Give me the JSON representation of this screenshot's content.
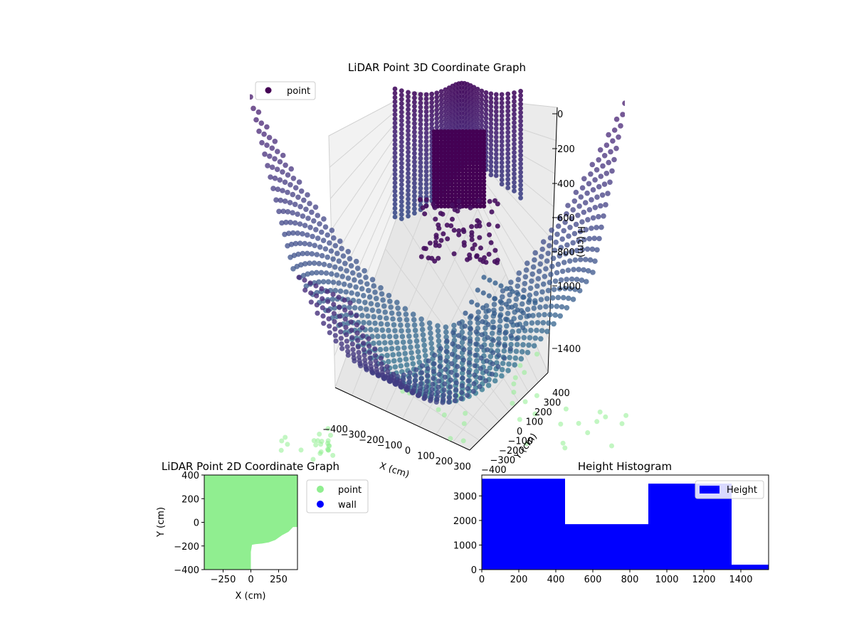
{
  "chart_data": [
    {
      "type": "scatter",
      "projection": "3d",
      "title": "LiDAR Point 3D Coordinate Graph",
      "xlabel": "X (cm)",
      "ylabel": "Y (cm)",
      "zlabel": "H (cm)",
      "x_ticks": [
        "−400",
        "−300",
        "−200",
        "−100",
        "0",
        "100",
        "200",
        "300"
      ],
      "y_ticks": [
        "−400",
        "−300",
        "−200",
        "−100",
        "0",
        "100",
        "200",
        "300",
        "400"
      ],
      "z_ticks": [
        "0",
        "200",
        "400",
        "600",
        "800",
        "1000",
        "1400"
      ],
      "xlim": [
        -450,
        350
      ],
      "ylim": [
        -450,
        450
      ],
      "zlim": [
        0,
        1500
      ],
      "z_inverted": true,
      "grid": true,
      "colormap": "viridis",
      "series": [
        {
          "name": "point",
          "color": "#440154",
          "description": "lidar returns colored by height"
        }
      ],
      "floor_projection_color": "#90ee90",
      "legend": "top-left"
    },
    {
      "type": "scatter",
      "title": "LiDAR Point 2D Coordinate Graph",
      "xlabel": "X (cm)",
      "ylabel": "Y (cm)",
      "x_ticks": [
        "−250",
        "0",
        "250"
      ],
      "y_ticks": [
        "400",
        "200",
        "0",
        "−200",
        "−400"
      ],
      "xlim": [
        -420,
        420
      ],
      "ylim": [
        -400,
        400
      ],
      "series": [
        {
          "name": "point",
          "color": "#90ee90"
        },
        {
          "name": "wall",
          "color": "#0000ff"
        }
      ],
      "boundary": [
        [
          -420,
          400
        ],
        [
          420,
          400
        ],
        [
          420,
          -40
        ],
        [
          380,
          -40
        ],
        [
          340,
          -80
        ],
        [
          280,
          -110
        ],
        [
          220,
          -150
        ],
        [
          160,
          -170
        ],
        [
          100,
          -180
        ],
        [
          40,
          -185
        ],
        [
          10,
          -190
        ],
        [
          0,
          -250
        ],
        [
          0,
          -400
        ],
        [
          -420,
          -400
        ]
      ],
      "legend": "right-outside"
    },
    {
      "type": "bar",
      "subtype": "histogram",
      "title": "Height Histogram",
      "x_ticks": [
        "0",
        "200",
        "400",
        "600",
        "800",
        "1000",
        "1200",
        "1400"
      ],
      "y_ticks": [
        "0",
        "1000",
        "2000",
        "3000"
      ],
      "xlim": [
        0,
        1550
      ],
      "ylim": [
        0,
        3850
      ],
      "bin_edges": [
        0,
        450,
        900,
        1350,
        1800
      ],
      "values": [
        3700,
        1850,
        3500,
        200
      ],
      "series": [
        {
          "name": "Height",
          "color": "#0000ff"
        }
      ],
      "legend": "top-right"
    }
  ]
}
